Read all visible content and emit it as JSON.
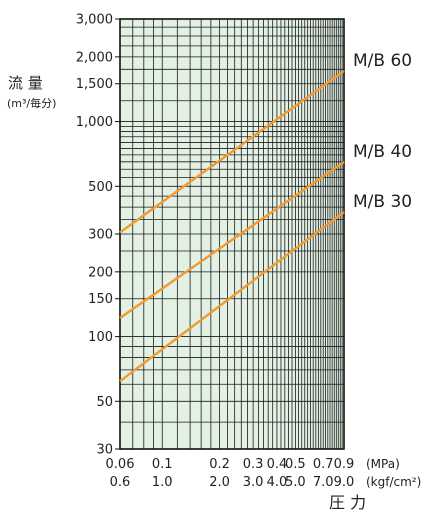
{
  "chart_data": {
    "type": "line",
    "x_scale": "log",
    "y_scale": "log",
    "ylabel": "流 量",
    "ylabel_unit": "(m³/毎分)",
    "xlabel": "圧 力",
    "x_unit_primary": "(MPa)",
    "x_unit_secondary": "(kgf/cm²)",
    "xlim": [
      0.06,
      0.9
    ],
    "ylim": [
      30,
      3000
    ],
    "x_ticks_primary": [
      "0.06",
      "0.1",
      "0.2",
      "0.3",
      "0.4",
      "0.5",
      "0.7",
      "0.9"
    ],
    "x_ticks_secondary": [
      "0.6",
      "1.0",
      "2.0",
      "3.0",
      "4.0",
      "5.0",
      "7.0",
      "9.0"
    ],
    "x_tick_values": [
      0.06,
      0.1,
      0.2,
      0.3,
      0.4,
      0.5,
      0.7,
      0.9
    ],
    "y_ticks": [
      "30",
      "50",
      "100",
      "150",
      "200",
      "300",
      "500",
      "1,000",
      "1,500",
      "2,000",
      "3,000"
    ],
    "y_tick_values": [
      30,
      50,
      100,
      150,
      200,
      300,
      500,
      1000,
      1500,
      2000,
      3000
    ],
    "grid": true,
    "series": [
      {
        "name": "M/B 60",
        "x": [
          0.06,
          0.9
        ],
        "y": [
          305,
          1720
        ]
      },
      {
        "name": "M/B 40",
        "x": [
          0.06,
          0.9
        ],
        "y": [
          122,
          650
        ]
      },
      {
        "name": "M/B 30",
        "x": [
          0.06,
          0.9
        ],
        "y": [
          62,
          380
        ]
      }
    ],
    "colors": {
      "line": "#f39a2c",
      "plot_bg": "#e3f1e4",
      "grid": "#1a1a1a"
    }
  }
}
